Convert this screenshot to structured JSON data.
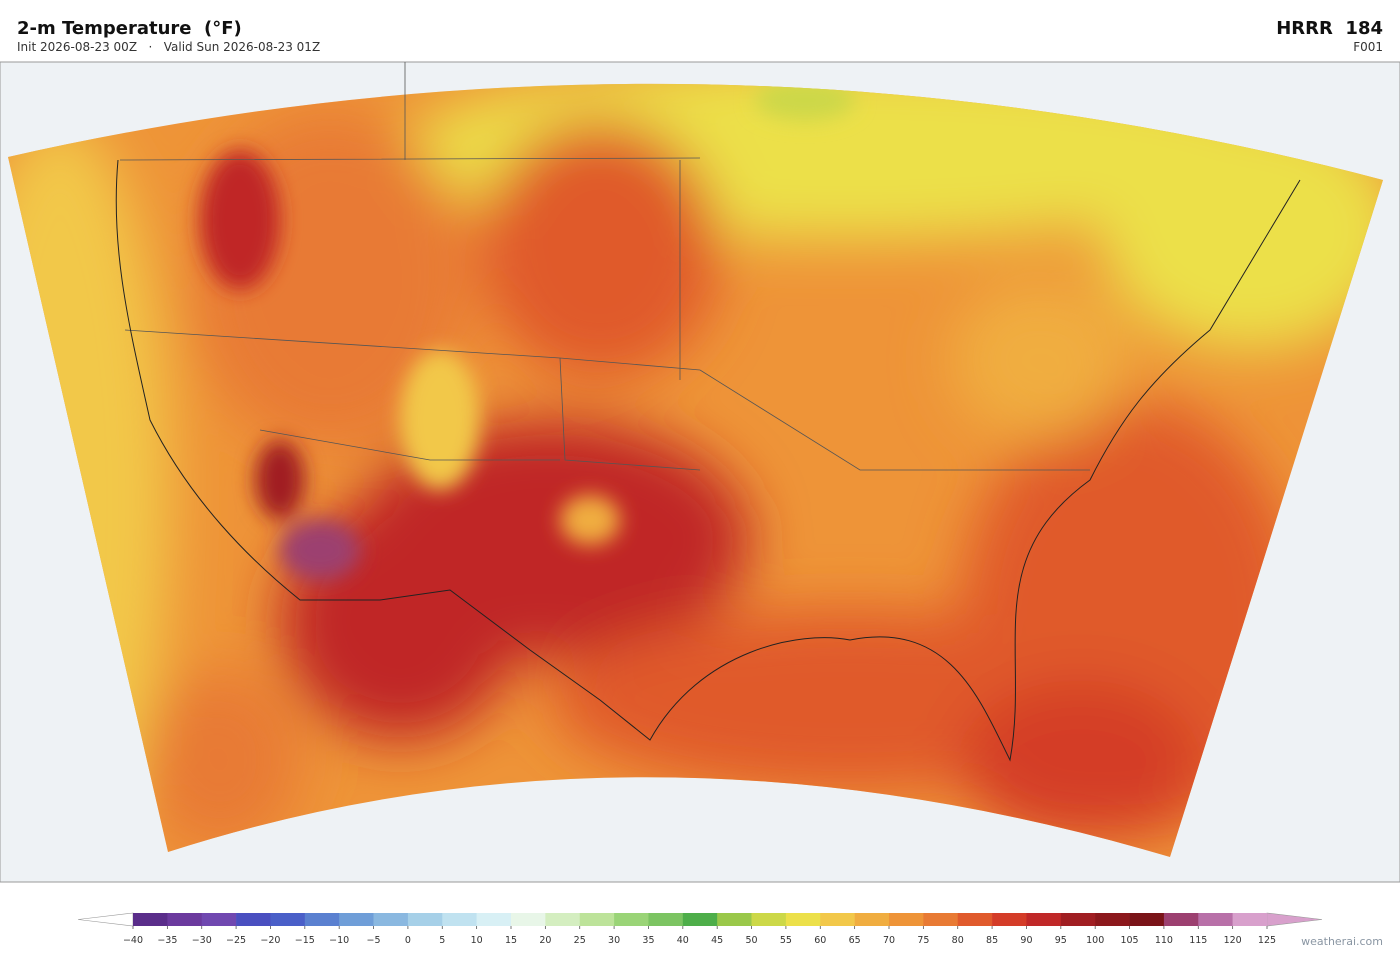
{
  "header": {
    "title": "2-m Temperature  (°F)",
    "subtitle": "Init 2026-08-23 00Z   ·   Valid Sun 2026-08-23 01Z",
    "model": "HRRR  184",
    "forecast_hour": "F001"
  },
  "colorbar": {
    "ticks": [
      {
        "value": -40,
        "label": "−40"
      },
      {
        "value": -35,
        "label": "−35"
      },
      {
        "value": -30,
        "label": "−30"
      },
      {
        "value": -25,
        "label": "−25"
      },
      {
        "value": -20,
        "label": "−20"
      },
      {
        "value": -15,
        "label": "−15"
      },
      {
        "value": -10,
        "label": "−10"
      },
      {
        "value": -5,
        "label": "−5"
      },
      0,
      5,
      10,
      15,
      20,
      25,
      30,
      35,
      40,
      45,
      50,
      55,
      60,
      65,
      70,
      75,
      80,
      85,
      90,
      95,
      100,
      105,
      110,
      115,
      120,
      125
    ],
    "colors": [
      "#5a2d8a",
      "#6b3a9e",
      "#7048b0",
      "#4a4fc0",
      "#4a5fc8",
      "#5a80d0",
      "#6f9ed8",
      "#8ab8e0",
      "#a6d0e8",
      "#c0e2f0",
      "#d8f0f5",
      "#e8f6e8",
      "#d4eec0",
      "#bde39a",
      "#9ad477",
      "#7cc462",
      "#4eae4a",
      "#9ac84a",
      "#ccd848",
      "#ece04a",
      "#f2c84a",
      "#f0ad40",
      "#ee9438",
      "#e87a34",
      "#e05a2c",
      "#d43c28",
      "#c02828",
      "#a01e22",
      "#8c181c",
      "#7a1418",
      "#9c4070",
      "#b870a8",
      "#d8a0cc"
    ]
  },
  "watermark": "weatherai.com"
}
